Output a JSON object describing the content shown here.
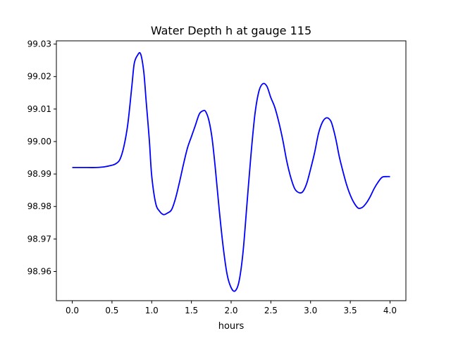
{
  "chart_data": {
    "type": "line",
    "title": "Water Depth h at gauge 115",
    "xlabel": "hours",
    "ylabel": "",
    "xlim": [
      -0.2,
      4.2
    ],
    "ylim": [
      98.951,
      99.031
    ],
    "x_ticks": [
      0.0,
      0.5,
      1.0,
      1.5,
      2.0,
      2.5,
      3.0,
      3.5,
      4.0
    ],
    "x_tick_labels": [
      "0.0",
      "0.5",
      "1.0",
      "1.5",
      "2.0",
      "2.5",
      "3.0",
      "3.5",
      "4.0"
    ],
    "y_ticks": [
      98.96,
      98.97,
      98.98,
      98.99,
      99.0,
      99.01,
      99.02,
      99.03
    ],
    "y_tick_labels": [
      "98.96",
      "98.97",
      "98.98",
      "98.99",
      "99.00",
      "99.01",
      "99.02",
      "99.03"
    ],
    "grid": false,
    "legend": "none",
    "series": [
      {
        "color": "#0000ff",
        "x": [
          0.0,
          0.1,
          0.2,
          0.3,
          0.4,
          0.5,
          0.55,
          0.6,
          0.65,
          0.7,
          0.75,
          0.78,
          0.82,
          0.86,
          0.9,
          0.93,
          0.97,
          1.0,
          1.05,
          1.1,
          1.15,
          1.2,
          1.25,
          1.3,
          1.35,
          1.4,
          1.45,
          1.5,
          1.55,
          1.6,
          1.65,
          1.68,
          1.72,
          1.76,
          1.8,
          1.85,
          1.9,
          1.95,
          2.0,
          2.05,
          2.1,
          2.15,
          2.2,
          2.25,
          2.3,
          2.35,
          2.4,
          2.45,
          2.5,
          2.55,
          2.6,
          2.65,
          2.7,
          2.75,
          2.8,
          2.85,
          2.9,
          2.95,
          3.0,
          3.05,
          3.1,
          3.15,
          3.2,
          3.25,
          3.28,
          3.32,
          3.36,
          3.4,
          3.45,
          3.5,
          3.55,
          3.6,
          3.65,
          3.7,
          3.75,
          3.8,
          3.85,
          3.9,
          3.95,
          4.0
        ],
        "y": [
          98.992,
          98.992,
          98.992,
          98.992,
          98.9922,
          98.9927,
          98.9932,
          98.9945,
          98.9985,
          99.0055,
          99.017,
          99.024,
          99.0265,
          99.027,
          99.0215,
          99.0125,
          99.0005,
          98.9895,
          98.981,
          98.9785,
          98.9775,
          98.978,
          98.979,
          98.9825,
          98.9875,
          98.993,
          98.998,
          99.0015,
          99.005,
          99.0085,
          99.0095,
          99.0092,
          99.0065,
          99.001,
          98.992,
          98.979,
          98.9675,
          98.959,
          98.955,
          98.954,
          98.957,
          98.966,
          98.981,
          98.996,
          99.0085,
          99.0155,
          99.0178,
          99.017,
          99.0135,
          99.0105,
          99.006,
          99.0005,
          98.994,
          98.989,
          98.9855,
          98.9843,
          98.9845,
          98.987,
          98.9915,
          98.9965,
          99.0025,
          99.006,
          99.0073,
          99.0065,
          99.0045,
          99.0005,
          98.9955,
          98.9915,
          98.987,
          98.9835,
          98.981,
          98.9795,
          98.9797,
          98.981,
          98.983,
          98.9855,
          98.9875,
          98.989,
          98.9892,
          98.9892
        ]
      }
    ]
  }
}
